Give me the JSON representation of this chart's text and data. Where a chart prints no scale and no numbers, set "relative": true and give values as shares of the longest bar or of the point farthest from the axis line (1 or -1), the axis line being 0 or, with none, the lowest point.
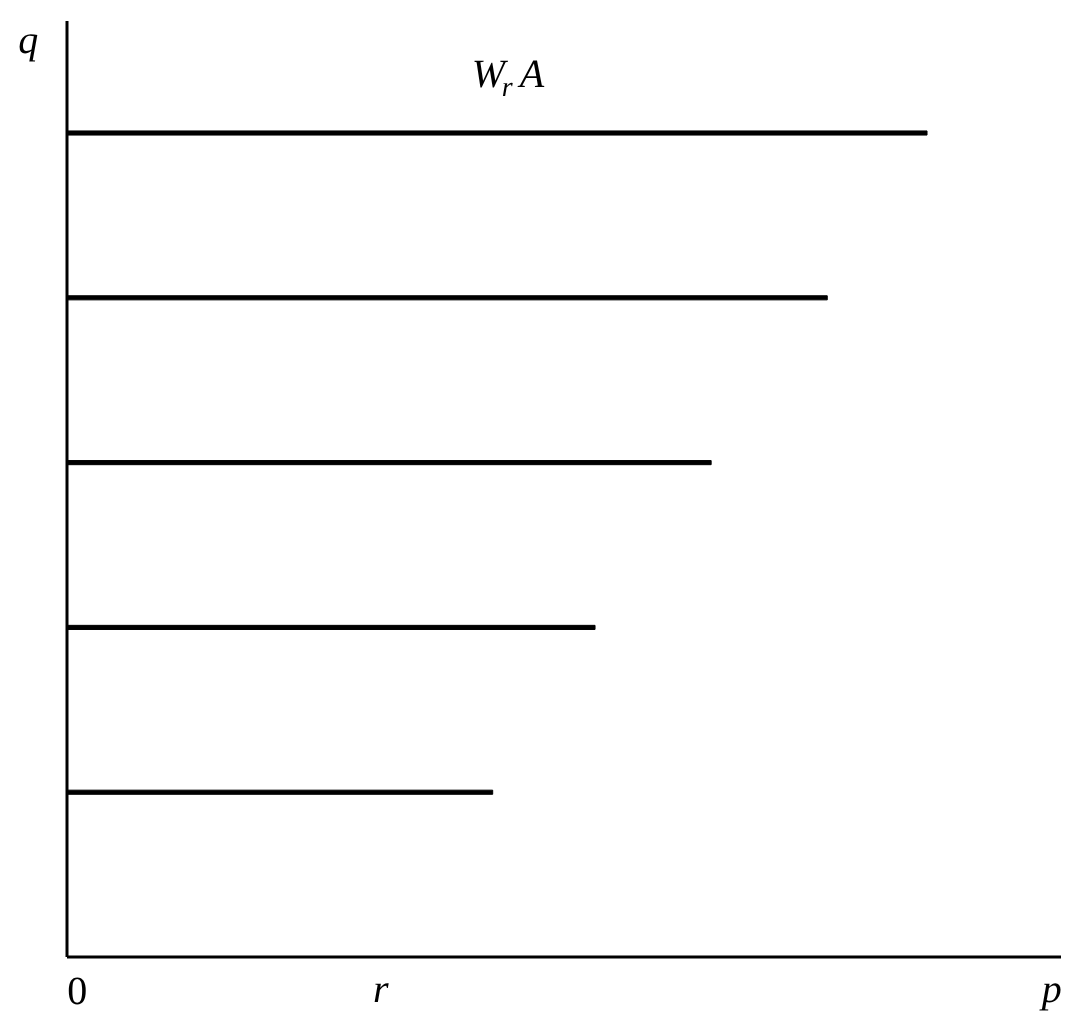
{
  "chart_data": {
    "type": "bar",
    "orientation": "horizontal",
    "relative": true,
    "title": "W$_{r}$A",
    "xlabel": "p",
    "ylabel": "q",
    "annotations": [
      "0",
      "r"
    ],
    "categories": [
      null,
      null,
      null,
      null,
      null
    ],
    "values": [
      1,
      0.884,
      0.749,
      0.614,
      0.495
    ],
    "color": "#000000"
  }
}
